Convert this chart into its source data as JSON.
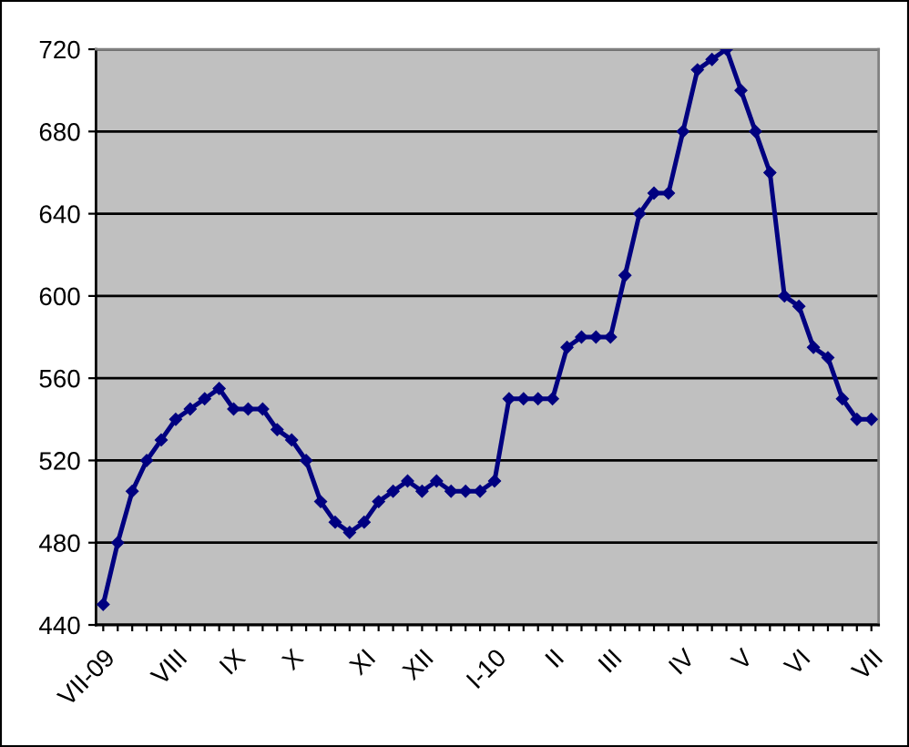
{
  "chart_data": {
    "type": "line",
    "categories": [
      "VII-09",
      null,
      null,
      null,
      null,
      "VIII",
      null,
      null,
      null,
      "IX",
      null,
      null,
      null,
      "X",
      null,
      null,
      null,
      null,
      "XI",
      null,
      null,
      null,
      "XII",
      null,
      null,
      null,
      null,
      "I-10",
      null,
      null,
      null,
      "II",
      null,
      null,
      null,
      "III",
      null,
      null,
      null,
      null,
      "IV",
      null,
      null,
      null,
      "V",
      null,
      null,
      null,
      "VI",
      null,
      null,
      null,
      null,
      "VII"
    ],
    "series": [
      {
        "color": "#000080",
        "values": [
          450,
          480,
          505,
          520,
          530,
          540,
          545,
          550,
          555,
          545,
          545,
          545,
          535,
          530,
          520,
          500,
          490,
          485,
          490,
          500,
          505,
          510,
          505,
          510,
          505,
          505,
          505,
          510,
          550,
          550,
          550,
          550,
          575,
          580,
          580,
          580,
          610,
          640,
          650,
          650,
          680,
          710,
          715,
          720,
          700,
          680,
          660,
          600,
          595,
          575,
          570,
          550,
          540,
          540
        ]
      }
    ],
    "ylim": [
      440,
      720
    ],
    "yticks": [
      440,
      480,
      520,
      560,
      600,
      640,
      680,
      720
    ],
    "grid": "y",
    "marker": "diamond",
    "line_style": "solid"
  }
}
